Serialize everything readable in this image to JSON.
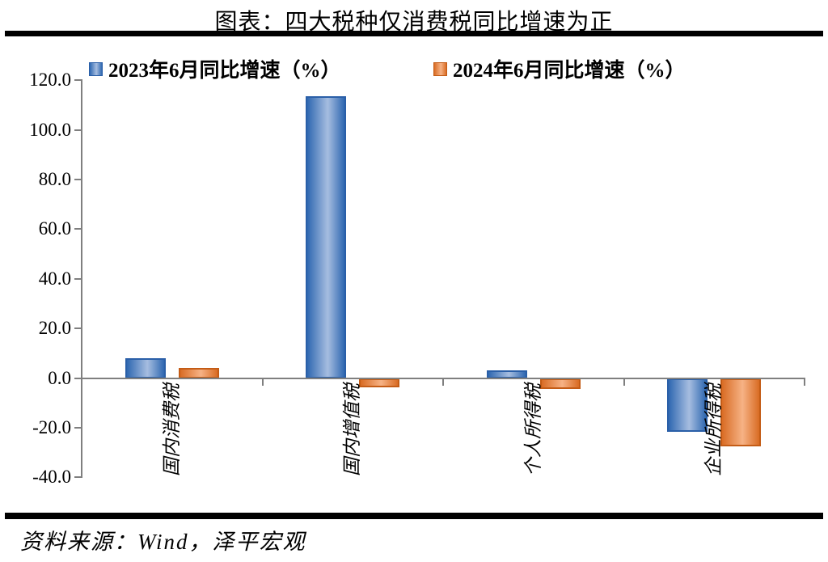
{
  "title": "图表：四大税种仅消费税同比增速为正",
  "source_note": "资料来源：Wind，泽平宏观",
  "chart_data": {
    "type": "bar",
    "title": "图表：四大税种仅消费税同比增速为正",
    "categories": [
      "国内消费税",
      "国内增值税",
      "个人所得税",
      "企业所得税"
    ],
    "series": [
      {
        "name": "2023年6月同比增速（%）",
        "values": [
          8.2,
          113.8,
          3.3,
          -21.5
        ],
        "color_edge": "#2f68b1",
        "color_light": "#a6bde0",
        "border": "#2a5fa8"
      },
      {
        "name": "2024年6月同比增速（%）",
        "values": [
          4.2,
          -3.6,
          -4.2,
          -27.5
        ],
        "color_edge": "#d96c24",
        "color_light": "#f6b285",
        "border": "#c45c16"
      }
    ],
    "xlabel": "",
    "ylabel": "",
    "ylim": [
      -40,
      120
    ],
    "ytick_step": 20,
    "ytick_labels": [
      "120.0",
      "100.0",
      "80.0",
      "60.0",
      "40.0",
      "20.0",
      "0.0",
      "-20.0",
      "-40.0"
    ],
    "legend_position": "top",
    "grid": false,
    "axis_color": "#7f7f7f"
  }
}
